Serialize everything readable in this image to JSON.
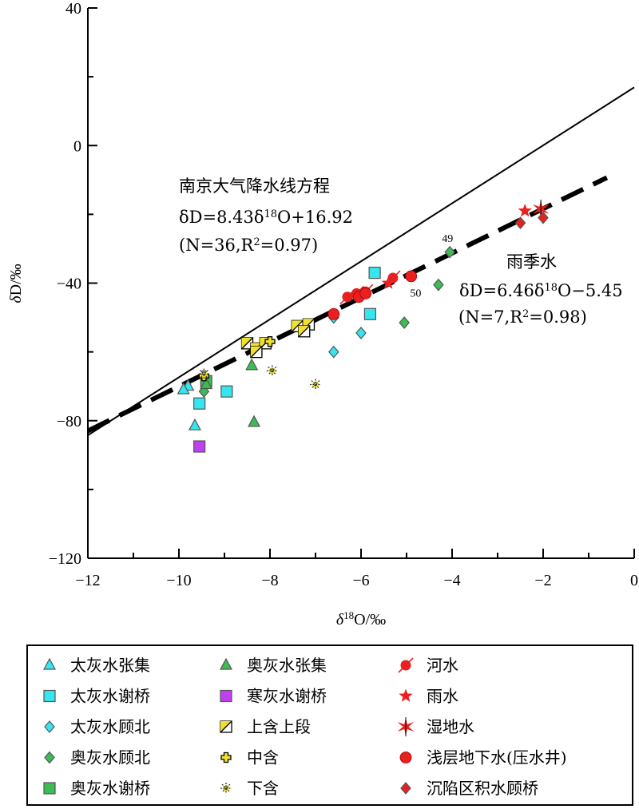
{
  "chart_data": {
    "type": "scatter",
    "xlabel": "δ18O/‰",
    "ylabel": "δD/‰",
    "xlim": [
      -12,
      0
    ],
    "ylim": [
      -120,
      40
    ],
    "xticks": [
      -12,
      -10,
      -8,
      -6,
      -4,
      -2,
      0
    ],
    "yticks": [
      -120,
      -80,
      -40,
      0,
      40
    ],
    "grid": false,
    "legend_position": "bottom",
    "lines": [
      {
        "name": "南京大气降水线方程",
        "equation": "δD=8.43δ18O+16.92",
        "stats": "(N=36,R2=0.97)",
        "slope": 8.43,
        "intercept": 16.92,
        "style": "solid",
        "x_range": [
          -12,
          0
        ]
      },
      {
        "name": "雨季水",
        "equation": "δD=6.46δ18O−5.45",
        "stats": "(N=7,R2=0.98)",
        "slope": 6.46,
        "intercept": -5.45,
        "style": "dashed",
        "x_range": [
          -12,
          -0.6
        ]
      }
    ],
    "annotations": {
      "gmwl_title": "南京大气降水线方程",
      "gmwl_eq": "δD=8.43δ18O+16.92",
      "gmwl_stats": "(N=36,R2=0.97)",
      "rain_title": "雨季水",
      "rain_eq": "δD=6.46δ18O−5.45",
      "rain_stats": "(N=7,R2=0.98)"
    },
    "point_labels": [
      {
        "text": "49",
        "x": -4.1,
        "y": -28
      },
      {
        "text": "50",
        "x": -4.8,
        "y": -44
      }
    ],
    "series": [
      {
        "name": "太灰水张集",
        "marker": "triangle",
        "color": "#33e6f0",
        "points": [
          [
            -9.8,
            -70
          ],
          [
            -9.9,
            -71
          ],
          [
            -9.65,
            -81.5
          ]
        ]
      },
      {
        "name": "太灰水谢桥",
        "marker": "square",
        "color": "#33e6f0",
        "points": [
          [
            -9.55,
            -75
          ],
          [
            -8.95,
            -71.5
          ],
          [
            -5.7,
            -37
          ],
          [
            -5.8,
            -49
          ]
        ]
      },
      {
        "name": "太灰水顾北",
        "marker": "diamond",
        "color": "#33e6f0",
        "points": [
          [
            -6.6,
            -50
          ],
          [
            -6.6,
            -60
          ],
          [
            -6.0,
            -54.5
          ]
        ]
      },
      {
        "name": "奥灰水顾北",
        "marker": "diamond",
        "color": "#3dbb55",
        "points": [
          [
            -9.45,
            -71.5
          ],
          [
            -4.05,
            -31
          ],
          [
            -4.3,
            -40.5
          ],
          [
            -5.05,
            -51.5
          ]
        ]
      },
      {
        "name": "奥灰水谢桥",
        "marker": "square",
        "color": "#3dbb55",
        "points": [
          [
            -9.4,
            -68.5
          ]
        ]
      },
      {
        "name": "奥灰水张集",
        "marker": "triangle",
        "color": "#3dbb55",
        "points": [
          [
            -9.4,
            -69.5
          ],
          [
            -8.4,
            -64
          ],
          [
            -8.35,
            -80.5
          ]
        ]
      },
      {
        "name": "寒灰水谢桥",
        "marker": "square",
        "color": "#c040f0",
        "points": [
          [
            -9.55,
            -87.5
          ]
        ]
      },
      {
        "name": "上含上段",
        "marker": "halfsquare",
        "color": "#f0e030",
        "points": [
          [
            -8.5,
            -57.5
          ],
          [
            -8.3,
            -59
          ],
          [
            -8.1,
            -57.5
          ],
          [
            -7.4,
            -52.5
          ],
          [
            -7.15,
            -52
          ],
          [
            -7.25,
            -54
          ],
          [
            -8.3,
            -60
          ]
        ]
      },
      {
        "name": "中含",
        "marker": "cross",
        "color": "#f0e030",
        "points": [
          [
            -8.0,
            -57
          ],
          [
            -9.45,
            -67
          ]
        ]
      },
      {
        "name": "下含",
        "marker": "asterisk",
        "color": "#f0e030",
        "points": [
          [
            -7.95,
            -65.5
          ],
          [
            -7.0,
            -69.5
          ],
          [
            -9.45,
            -66.5
          ]
        ]
      },
      {
        "name": "河水",
        "marker": "circle-arrow",
        "color": "#e82020",
        "points": [
          [
            -6.3,
            -44
          ],
          [
            -6.1,
            -43
          ],
          [
            -5.9,
            -42.5
          ],
          [
            -5.3,
            -38.5
          ]
        ]
      },
      {
        "name": "雨水",
        "marker": "star",
        "color": "#e82020",
        "points": [
          [
            -5.4,
            -40
          ],
          [
            -2.4,
            -19
          ]
        ]
      },
      {
        "name": "湿地水",
        "marker": "burst",
        "color": "#e82020",
        "points": [
          [
            -2.05,
            -18.5
          ]
        ]
      },
      {
        "name": "浅层地下水(压水井)",
        "marker": "circle",
        "color": "#e82020",
        "points": [
          [
            -6.6,
            -49
          ],
          [
            -6.05,
            -44
          ],
          [
            -5.9,
            -43
          ],
          [
            -4.9,
            -38
          ]
        ]
      },
      {
        "name": "沉陷区积水顾桥",
        "marker": "diamond",
        "color": "#e82020",
        "points": [
          [
            -2.5,
            -22.5
          ],
          [
            -2.0,
            -21
          ]
        ]
      }
    ]
  },
  "legend": {
    "col1": [
      "太灰水张集",
      "太灰水谢桥",
      "太灰水顾北",
      "奥灰水顾北",
      "奥灰水谢桥"
    ],
    "col2": [
      "奥灰水张集",
      "寒灰水谢桥",
      "上含上段",
      "中含",
      "下含"
    ],
    "col3": [
      "河水",
      "雨水",
      "湿地水",
      "浅层地下水(压水井)",
      "沉陷区积水顾桥"
    ]
  }
}
